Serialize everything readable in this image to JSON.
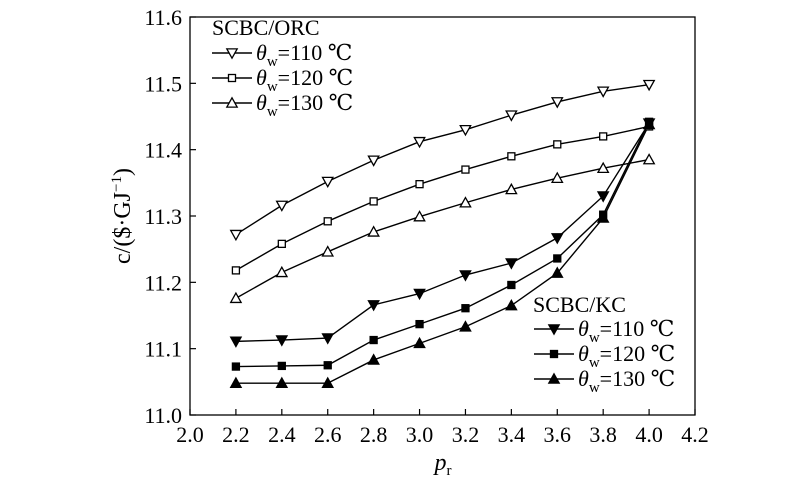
{
  "chart_data": {
    "type": "line",
    "xlabel": "p",
    "xlabel_sub": "r",
    "ylabel": "c/($·GJ",
    "ylabel_sup": "−1",
    "ylabel_close": ")",
    "xlim": [
      2.0,
      4.2
    ],
    "ylim": [
      11.0,
      11.6
    ],
    "xticks": [
      "2.0",
      "2.2",
      "2.4",
      "2.6",
      "2.8",
      "3.0",
      "3.2",
      "3.4",
      "3.6",
      "3.8",
      "4.0",
      "4.2"
    ],
    "yticks": [
      "11.0",
      "11.1",
      "11.2",
      "11.3",
      "11.4",
      "11.5",
      "11.6"
    ],
    "grid": false,
    "x": [
      2.2,
      2.4,
      2.6,
      2.8,
      3.0,
      3.2,
      3.4,
      3.6,
      3.8,
      4.0
    ],
    "legend_groups": [
      {
        "title": "SCBC/ORC",
        "position": "top-left"
      },
      {
        "title": "SCBC/KC",
        "position": "bottom-right"
      }
    ],
    "series": [
      {
        "group": 0,
        "label_symbol": "θ",
        "label_sub": "w",
        "label_value": "=110 ℃",
        "marker": "triangle-down-open",
        "values": [
          11.272,
          11.316,
          11.352,
          11.384,
          11.412,
          11.43,
          11.452,
          11.472,
          11.488,
          11.498
        ]
      },
      {
        "group": 0,
        "label_symbol": "θ",
        "label_sub": "w",
        "label_value": "=120 ℃",
        "marker": "square-open",
        "values": [
          11.218,
          11.258,
          11.292,
          11.322,
          11.348,
          11.37,
          11.39,
          11.408,
          11.42,
          11.435
        ]
      },
      {
        "group": 0,
        "label_symbol": "θ",
        "label_sub": "w",
        "label_value": "=130 ℃",
        "marker": "triangle-up-open",
        "values": [
          11.176,
          11.215,
          11.246,
          11.276,
          11.299,
          11.32,
          11.34,
          11.357,
          11.372,
          11.385
        ]
      },
      {
        "group": 1,
        "label_symbol": "θ",
        "label_sub": "w",
        "label_value": "=110 ℃",
        "marker": "triangle-down-filled",
        "values": [
          11.111,
          11.113,
          11.116,
          11.166,
          11.183,
          11.211,
          11.229,
          11.267,
          11.33,
          11.44
        ]
      },
      {
        "group": 1,
        "label_symbol": "θ",
        "label_sub": "w",
        "label_value": "=120 ℃",
        "marker": "square-filled",
        "values": [
          11.073,
          11.074,
          11.075,
          11.113,
          11.137,
          11.161,
          11.196,
          11.236,
          11.302,
          11.442
        ]
      },
      {
        "group": 1,
        "label_symbol": "θ",
        "label_sub": "w",
        "label_value": "=130 ℃",
        "marker": "triangle-up-filled",
        "values": [
          11.048,
          11.048,
          11.048,
          11.083,
          11.108,
          11.133,
          11.165,
          11.214,
          11.297,
          11.438
        ]
      }
    ]
  }
}
